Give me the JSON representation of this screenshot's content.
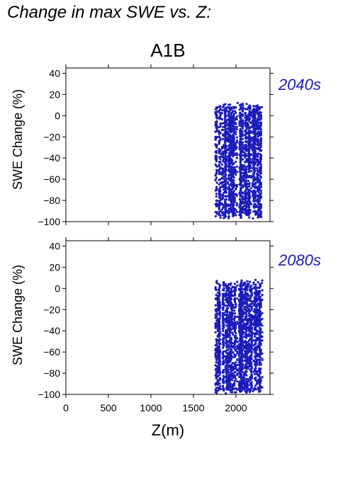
{
  "title": "Change in max SWE vs. Z:",
  "scenario_title": "A1B",
  "colors": {
    "points": "#1c1cba",
    "period_label": "#1c1cba",
    "axes": "#000000"
  },
  "chart_data": [
    {
      "type": "scatter",
      "period_label": "2040s",
      "ylabel": "SWE Change (%)",
      "xlim": [
        0,
        2400
      ],
      "ylim": [
        -100,
        45
      ],
      "x_ticks": [
        0,
        500,
        1000,
        1500,
        2000
      ],
      "y_ticks": [
        -100,
        -80,
        -60,
        -40,
        -20,
        0,
        20,
        40
      ],
      "grid": false,
      "x_range": [
        1760,
        2310
      ],
      "y_range": [
        -97,
        12
      ],
      "series": [
        {
          "points": [
            [
              1762,
              -95
            ],
            [
              1762,
              -40
            ],
            [
              1762,
              6
            ],
            [
              1780,
              -85
            ],
            [
              1795,
              -20
            ],
            [
              1812,
              -70
            ],
            [
              1820,
              -90
            ],
            [
              1840,
              5
            ],
            [
              1860,
              -30
            ],
            [
              1880,
              -95
            ],
            [
              1900,
              8
            ],
            [
              1950,
              -60
            ],
            [
              2000,
              -94
            ],
            [
              2020,
              12
            ],
            [
              2060,
              -5
            ],
            [
              2100,
              -85
            ],
            [
              2150,
              8
            ],
            [
              2200,
              -97
            ],
            [
              2250,
              6
            ],
            [
              2280,
              -78
            ],
            [
              2305,
              8
            ]
          ]
        }
      ]
    },
    {
      "type": "scatter",
      "period_label": "2080s",
      "ylabel": "SWE Change (%)",
      "xlabel": "Z(m)",
      "xlim": [
        0,
        2400
      ],
      "ylim": [
        -100,
        45
      ],
      "x_ticks": [
        0,
        500,
        1000,
        1500,
        2000
      ],
      "y_ticks": [
        -100,
        -80,
        -60,
        -40,
        -20,
        0,
        20,
        40
      ],
      "grid": false,
      "x_range": [
        1760,
        2310
      ],
      "y_range": [
        -99,
        8
      ],
      "series": [
        {
          "points": [
            [
              1762,
              -98
            ],
            [
              1762,
              -20
            ],
            [
              1762,
              0
            ],
            [
              1780,
              -90
            ],
            [
              1800,
              -40
            ],
            [
              1820,
              -95
            ],
            [
              1850,
              -10
            ],
            [
              1880,
              -99
            ],
            [
              1900,
              2
            ],
            [
              1950,
              -80
            ],
            [
              2000,
              -98
            ],
            [
              2050,
              3
            ],
            [
              2100,
              -90
            ],
            [
              2150,
              4
            ],
            [
              2200,
              -97
            ],
            [
              2230,
              8
            ],
            [
              2260,
              -95
            ],
            [
              2290,
              -30
            ],
            [
              2305,
              5
            ]
          ]
        }
      ]
    }
  ]
}
